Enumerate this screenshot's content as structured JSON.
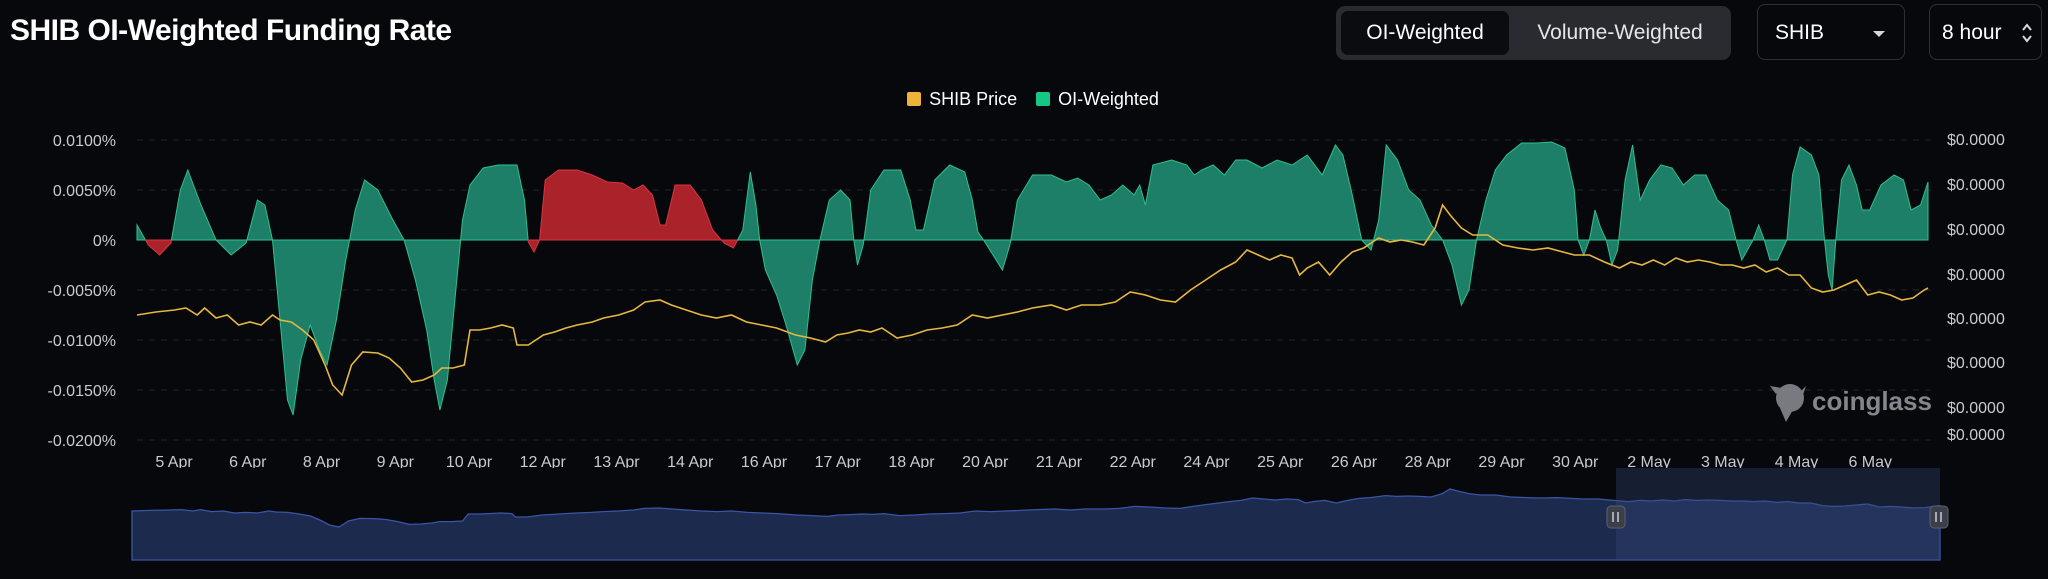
{
  "header": {
    "title": "SHIB OI-Weighted Funding Rate",
    "tabs": [
      {
        "label": "OI-Weighted",
        "active": true
      },
      {
        "label": "Volume-Weighted",
        "active": false
      }
    ],
    "symbol_select": {
      "value": "SHIB"
    },
    "interval_select": {
      "value": "8 hour"
    }
  },
  "watermark": {
    "text": "coinglass"
  },
  "chart_data": {
    "type": "area",
    "legend": [
      {
        "name": "SHIB Price",
        "color": "#f0b33a"
      },
      {
        "name": "OI-Weighted",
        "color": "#16c784"
      }
    ],
    "colors": {
      "positive": "#1f8a70",
      "negative": "#b8262f",
      "price": "#e8b73f",
      "navigator": "#1c2a4e"
    },
    "x_labels": [
      "5 Apr",
      "6 Apr",
      "8 Apr",
      "9 Apr",
      "10 Apr",
      "12 Apr",
      "13 Apr",
      "14 Apr",
      "16 Apr",
      "17 Apr",
      "18 Apr",
      "20 Apr",
      "21 Apr",
      "22 Apr",
      "24 Apr",
      "25 Apr",
      "26 Apr",
      "28 Apr",
      "29 Apr",
      "30 Apr",
      "2 May",
      "3 May",
      "4 May",
      "6 May"
    ],
    "y_left_ticks": [
      "0.0100%",
      "0.0050%",
      "0%",
      "-0.0050%",
      "-0.0100%",
      "-0.0150%",
      "-0.0200%"
    ],
    "y_left_range": [
      -0.02,
      0.01
    ],
    "y_right_ticks": [
      "$0.0000",
      "$0.0000",
      "$0.0000",
      "$0.0000",
      "$0.0000",
      "$0.0000",
      "$0.0000",
      "$0.0000"
    ],
    "funding_rate": [
      [
        0,
        0.0015
      ],
      [
        0.3,
        -0.0005
      ],
      [
        0.6,
        -0.0015
      ],
      [
        0.9,
        -0.0003
      ],
      [
        1.15,
        0.005
      ],
      [
        1.35,
        0.007
      ],
      [
        1.7,
        0.0035
      ],
      [
        2.1,
        0.0
      ],
      [
        2.5,
        -0.0015
      ],
      [
        2.9,
        -0.0003
      ],
      [
        3.2,
        0.004
      ],
      [
        3.4,
        0.0035
      ],
      [
        3.6,
        0.0
      ],
      [
        3.85,
        -0.01
      ],
      [
        4.0,
        -0.016
      ],
      [
        4.15,
        -0.0175
      ],
      [
        4.35,
        -0.012
      ],
      [
        4.6,
        -0.0085
      ],
      [
        4.85,
        -0.011
      ],
      [
        5.05,
        -0.0125
      ],
      [
        5.3,
        -0.008
      ],
      [
        5.55,
        -0.002
      ],
      [
        5.8,
        0.003
      ],
      [
        6.05,
        0.006
      ],
      [
        6.4,
        0.005
      ],
      [
        6.8,
        0.002
      ],
      [
        7.1,
        0.0
      ],
      [
        7.4,
        -0.004
      ],
      [
        7.7,
        -0.009
      ],
      [
        7.9,
        -0.014
      ],
      [
        8.05,
        -0.017
      ],
      [
        8.25,
        -0.014
      ],
      [
        8.45,
        -0.006
      ],
      [
        8.65,
        0.002
      ],
      [
        8.85,
        0.0055
      ],
      [
        9.2,
        0.0072
      ],
      [
        9.6,
        0.0075
      ],
      [
        10.1,
        0.0075
      ],
      [
        10.3,
        0.004
      ],
      [
        10.4,
        -0.0002
      ],
      [
        10.55,
        -0.0012
      ],
      [
        10.7,
        0.0
      ],
      [
        10.85,
        0.006
      ],
      [
        11.2,
        0.007
      ],
      [
        11.7,
        0.007
      ],
      [
        12.1,
        0.0065
      ],
      [
        12.5,
        0.0058
      ],
      [
        12.9,
        0.0057
      ],
      [
        13.2,
        0.005
      ],
      [
        13.45,
        0.0055
      ],
      [
        13.7,
        0.0045
      ],
      [
        13.9,
        0.0015
      ],
      [
        14.05,
        0.0015
      ],
      [
        14.3,
        0.0055
      ],
      [
        14.7,
        0.0055
      ],
      [
        15.0,
        0.004
      ],
      [
        15.3,
        0.001
      ],
      [
        15.6,
        -0.0003
      ],
      [
        15.85,
        -0.0008
      ],
      [
        16.1,
        0.001
      ],
      [
        16.3,
        0.0068
      ],
      [
        16.45,
        0.0035
      ],
      [
        16.55,
        0.0
      ],
      [
        16.7,
        -0.003
      ],
      [
        17.0,
        -0.0055
      ],
      [
        17.25,
        -0.0085
      ],
      [
        17.55,
        -0.0125
      ],
      [
        17.75,
        -0.011
      ],
      [
        17.95,
        -0.004
      ],
      [
        18.15,
        0.0
      ],
      [
        18.4,
        0.004
      ],
      [
        18.7,
        0.005
      ],
      [
        18.95,
        0.004
      ],
      [
        19.05,
        0.0
      ],
      [
        19.15,
        -0.0025
      ],
      [
        19.3,
        -0.0005
      ],
      [
        19.5,
        0.005
      ],
      [
        19.85,
        0.007
      ],
      [
        20.3,
        0.007
      ],
      [
        20.55,
        0.004
      ],
      [
        20.7,
        0.001
      ],
      [
        20.9,
        0.001
      ],
      [
        21.2,
        0.006
      ],
      [
        21.6,
        0.0075
      ],
      [
        22.0,
        0.0068
      ],
      [
        22.2,
        0.004
      ],
      [
        22.35,
        0.0008
      ],
      [
        22.5,
        0.0
      ],
      [
        22.75,
        -0.0015
      ],
      [
        23.0,
        -0.003
      ],
      [
        23.2,
        -0.0005
      ],
      [
        23.4,
        0.004
      ],
      [
        23.8,
        0.0065
      ],
      [
        24.3,
        0.0065
      ],
      [
        24.7,
        0.0058
      ],
      [
        25.0,
        0.0062
      ],
      [
        25.3,
        0.0055
      ],
      [
        25.6,
        0.004
      ],
      [
        25.9,
        0.0045
      ],
      [
        26.2,
        0.0055
      ],
      [
        26.5,
        0.0045
      ],
      [
        26.65,
        0.0055
      ],
      [
        26.8,
        0.0035
      ],
      [
        27.0,
        0.0075
      ],
      [
        27.5,
        0.008
      ],
      [
        27.9,
        0.0075
      ],
      [
        28.1,
        0.0065
      ],
      [
        28.3,
        0.007
      ],
      [
        28.6,
        0.0075
      ],
      [
        28.9,
        0.0065
      ],
      [
        29.2,
        0.008
      ],
      [
        29.5,
        0.008
      ],
      [
        29.9,
        0.0072
      ],
      [
        30.3,
        0.008
      ],
      [
        30.7,
        0.0075
      ],
      [
        31.1,
        0.0085
      ],
      [
        31.5,
        0.0065
      ],
      [
        31.85,
        0.0095
      ],
      [
        32.05,
        0.0085
      ],
      [
        32.3,
        0.0045
      ],
      [
        32.55,
        0.0
      ],
      [
        32.8,
        -0.001
      ],
      [
        33.0,
        0.002
      ],
      [
        33.2,
        0.0095
      ],
      [
        33.5,
        0.008
      ],
      [
        33.8,
        0.005
      ],
      [
        34.1,
        0.004
      ],
      [
        34.4,
        0.0015
      ],
      [
        34.7,
        0.0
      ],
      [
        34.95,
        -0.0025
      ],
      [
        35.2,
        -0.0065
      ],
      [
        35.4,
        -0.005
      ],
      [
        35.6,
        0.0
      ],
      [
        35.85,
        0.004
      ],
      [
        36.1,
        0.007
      ],
      [
        36.4,
        0.0085
      ],
      [
        36.8,
        0.0097
      ],
      [
        37.2,
        0.0097
      ],
      [
        37.6,
        0.0098
      ],
      [
        37.95,
        0.0092
      ],
      [
        38.2,
        0.005
      ],
      [
        38.3,
        0.0
      ],
      [
        38.45,
        -0.0015
      ],
      [
        38.6,
        0.0
      ],
      [
        38.75,
        0.003
      ],
      [
        38.9,
        0.0012
      ],
      [
        39.05,
        0.0
      ],
      [
        39.2,
        -0.0025
      ],
      [
        39.35,
        -0.001
      ],
      [
        39.55,
        0.006
      ],
      [
        39.75,
        0.0095
      ],
      [
        39.95,
        0.004
      ],
      [
        40.2,
        0.006
      ],
      [
        40.5,
        0.0075
      ],
      [
        40.8,
        0.0072
      ],
      [
        41.1,
        0.0055
      ],
      [
        41.4,
        0.0065
      ],
      [
        41.7,
        0.0065
      ],
      [
        42.0,
        0.004
      ],
      [
        42.3,
        0.003
      ],
      [
        42.5,
        0.0
      ],
      [
        42.65,
        -0.002
      ],
      [
        42.8,
        -0.001
      ],
      [
        42.95,
        0.0
      ],
      [
        43.1,
        0.0015
      ],
      [
        43.25,
        0.0
      ],
      [
        43.4,
        -0.002
      ],
      [
        43.6,
        -0.002
      ],
      [
        43.85,
        0.0
      ],
      [
        44.0,
        0.0065
      ],
      [
        44.2,
        0.0093
      ],
      [
        44.5,
        0.0085
      ],
      [
        44.7,
        0.0065
      ],
      [
        44.85,
        0.0
      ],
      [
        44.95,
        -0.0035
      ],
      [
        45.05,
        -0.005
      ],
      [
        45.15,
        0.0
      ],
      [
        45.3,
        0.006
      ],
      [
        45.5,
        0.0075
      ],
      [
        45.7,
        0.0055
      ],
      [
        45.85,
        0.003
      ],
      [
        46.05,
        0.003
      ],
      [
        46.35,
        0.0055
      ],
      [
        46.7,
        0.0065
      ],
      [
        46.95,
        0.006
      ],
      [
        47.15,
        0.003
      ],
      [
        47.4,
        0.0035
      ],
      [
        47.6,
        0.0058
      ]
    ],
    "price": [
      [
        0,
        -0.0075
      ],
      [
        0.5,
        -0.0072
      ],
      [
        1.0,
        -0.007
      ],
      [
        1.3,
        -0.0068
      ],
      [
        1.6,
        -0.0075
      ],
      [
        1.8,
        -0.0068
      ],
      [
        2.1,
        -0.0078
      ],
      [
        2.4,
        -0.0075
      ],
      [
        2.7,
        -0.0085
      ],
      [
        3.0,
        -0.0082
      ],
      [
        3.3,
        -0.0085
      ],
      [
        3.6,
        -0.0075
      ],
      [
        3.8,
        -0.008
      ],
      [
        4.1,
        -0.0082
      ],
      [
        4.4,
        -0.009
      ],
      [
        4.7,
        -0.01
      ],
      [
        5.0,
        -0.0125
      ],
      [
        5.2,
        -0.0145
      ],
      [
        5.45,
        -0.0155
      ],
      [
        5.7,
        -0.0125
      ],
      [
        6.0,
        -0.0112
      ],
      [
        6.4,
        -0.0113
      ],
      [
        6.7,
        -0.0118
      ],
      [
        7.0,
        -0.0128
      ],
      [
        7.3,
        -0.0142
      ],
      [
        7.6,
        -0.014
      ],
      [
        7.9,
        -0.0135
      ],
      [
        8.1,
        -0.0128
      ],
      [
        8.4,
        -0.0128
      ],
      [
        8.7,
        -0.0125
      ],
      [
        8.85,
        -0.009
      ],
      [
        9.1,
        -0.009
      ],
      [
        9.4,
        -0.0088
      ],
      [
        9.7,
        -0.0085
      ],
      [
        10.0,
        -0.0088
      ],
      [
        10.1,
        -0.0105
      ],
      [
        10.4,
        -0.0105
      ],
      [
        10.8,
        -0.0095
      ],
      [
        11.1,
        -0.0092
      ],
      [
        11.4,
        -0.0088
      ],
      [
        11.7,
        -0.0085
      ],
      [
        12.1,
        -0.0082
      ],
      [
        12.4,
        -0.0078
      ],
      [
        12.8,
        -0.0075
      ],
      [
        13.2,
        -0.007
      ],
      [
        13.5,
        -0.0062
      ],
      [
        13.9,
        -0.006
      ],
      [
        14.2,
        -0.0065
      ],
      [
        14.6,
        -0.007
      ],
      [
        15.0,
        -0.0075
      ],
      [
        15.4,
        -0.0078
      ],
      [
        15.8,
        -0.0075
      ],
      [
        16.2,
        -0.0082
      ],
      [
        16.6,
        -0.0085
      ],
      [
        17.0,
        -0.0088
      ],
      [
        17.5,
        -0.0095
      ],
      [
        17.9,
        -0.0098
      ],
      [
        18.3,
        -0.0102
      ],
      [
        18.6,
        -0.0095
      ],
      [
        18.9,
        -0.0093
      ],
      [
        19.2,
        -0.009
      ],
      [
        19.5,
        -0.0092
      ],
      [
        19.8,
        -0.0088
      ],
      [
        20.2,
        -0.0098
      ],
      [
        20.6,
        -0.0095
      ],
      [
        21.0,
        -0.009
      ],
      [
        21.4,
        -0.0088
      ],
      [
        21.8,
        -0.0085
      ],
      [
        22.2,
        -0.0075
      ],
      [
        22.6,
        -0.0078
      ],
      [
        23.0,
        -0.0075
      ],
      [
        23.4,
        -0.0072
      ],
      [
        23.8,
        -0.0068
      ],
      [
        24.3,
        -0.0065
      ],
      [
        24.7,
        -0.007
      ],
      [
        25.1,
        -0.0065
      ],
      [
        25.6,
        -0.0065
      ],
      [
        26.0,
        -0.0062
      ],
      [
        26.4,
        -0.0052
      ],
      [
        26.8,
        -0.0055
      ],
      [
        27.2,
        -0.006
      ],
      [
        27.6,
        -0.0062
      ],
      [
        28.0,
        -0.005
      ],
      [
        28.4,
        -0.004
      ],
      [
        28.8,
        -0.003
      ],
      [
        29.2,
        -0.0022
      ],
      [
        29.5,
        -0.001
      ],
      [
        29.8,
        -0.0015
      ],
      [
        30.1,
        -0.002
      ],
      [
        30.4,
        -0.0015
      ],
      [
        30.7,
        -0.0018
      ],
      [
        30.9,
        -0.0035
      ],
      [
        31.1,
        -0.0028
      ],
      [
        31.4,
        -0.0022
      ],
      [
        31.7,
        -0.0035
      ],
      [
        32.0,
        -0.0022
      ],
      [
        32.3,
        -0.0012
      ],
      [
        32.6,
        -0.0008
      ],
      [
        33.0,
        0.0002
      ],
      [
        33.3,
        -0.0002
      ],
      [
        33.6,
        0.0
      ],
      [
        33.9,
        -0.0002
      ],
      [
        34.2,
        -0.0005
      ],
      [
        34.5,
        0.0012
      ],
      [
        34.7,
        0.0035
      ],
      [
        34.9,
        0.0025
      ],
      [
        35.2,
        0.0012
      ],
      [
        35.5,
        0.0005
      ],
      [
        35.9,
        0.0005
      ],
      [
        36.3,
        -0.0005
      ],
      [
        36.7,
        -0.0008
      ],
      [
        37.1,
        -0.001
      ],
      [
        37.5,
        -0.0008
      ],
      [
        37.9,
        -0.0012
      ],
      [
        38.2,
        -0.0015
      ],
      [
        38.6,
        -0.0015
      ],
      [
        39.0,
        -0.0022
      ],
      [
        39.4,
        -0.0028
      ],
      [
        39.7,
        -0.0022
      ],
      [
        40.0,
        -0.0025
      ],
      [
        40.3,
        -0.002
      ],
      [
        40.6,
        -0.0025
      ],
      [
        40.9,
        -0.0018
      ],
      [
        41.2,
        -0.0022
      ],
      [
        41.5,
        -0.002
      ],
      [
        41.8,
        -0.0022
      ],
      [
        42.1,
        -0.0025
      ],
      [
        42.4,
        -0.0025
      ],
      [
        42.7,
        -0.0028
      ],
      [
        43.0,
        -0.0025
      ],
      [
        43.3,
        -0.0032
      ],
      [
        43.6,
        -0.0028
      ],
      [
        43.9,
        -0.0035
      ],
      [
        44.2,
        -0.0035
      ],
      [
        44.5,
        -0.0048
      ],
      [
        44.8,
        -0.0052
      ],
      [
        45.1,
        -0.005
      ],
      [
        45.4,
        -0.0045
      ],
      [
        45.7,
        -0.004
      ],
      [
        46.0,
        -0.0055
      ],
      [
        46.3,
        -0.0052
      ],
      [
        46.6,
        -0.0055
      ],
      [
        46.9,
        -0.006
      ],
      [
        47.2,
        -0.0058
      ],
      [
        47.5,
        -0.005
      ],
      [
        47.6,
        -0.0048
      ]
    ]
  }
}
